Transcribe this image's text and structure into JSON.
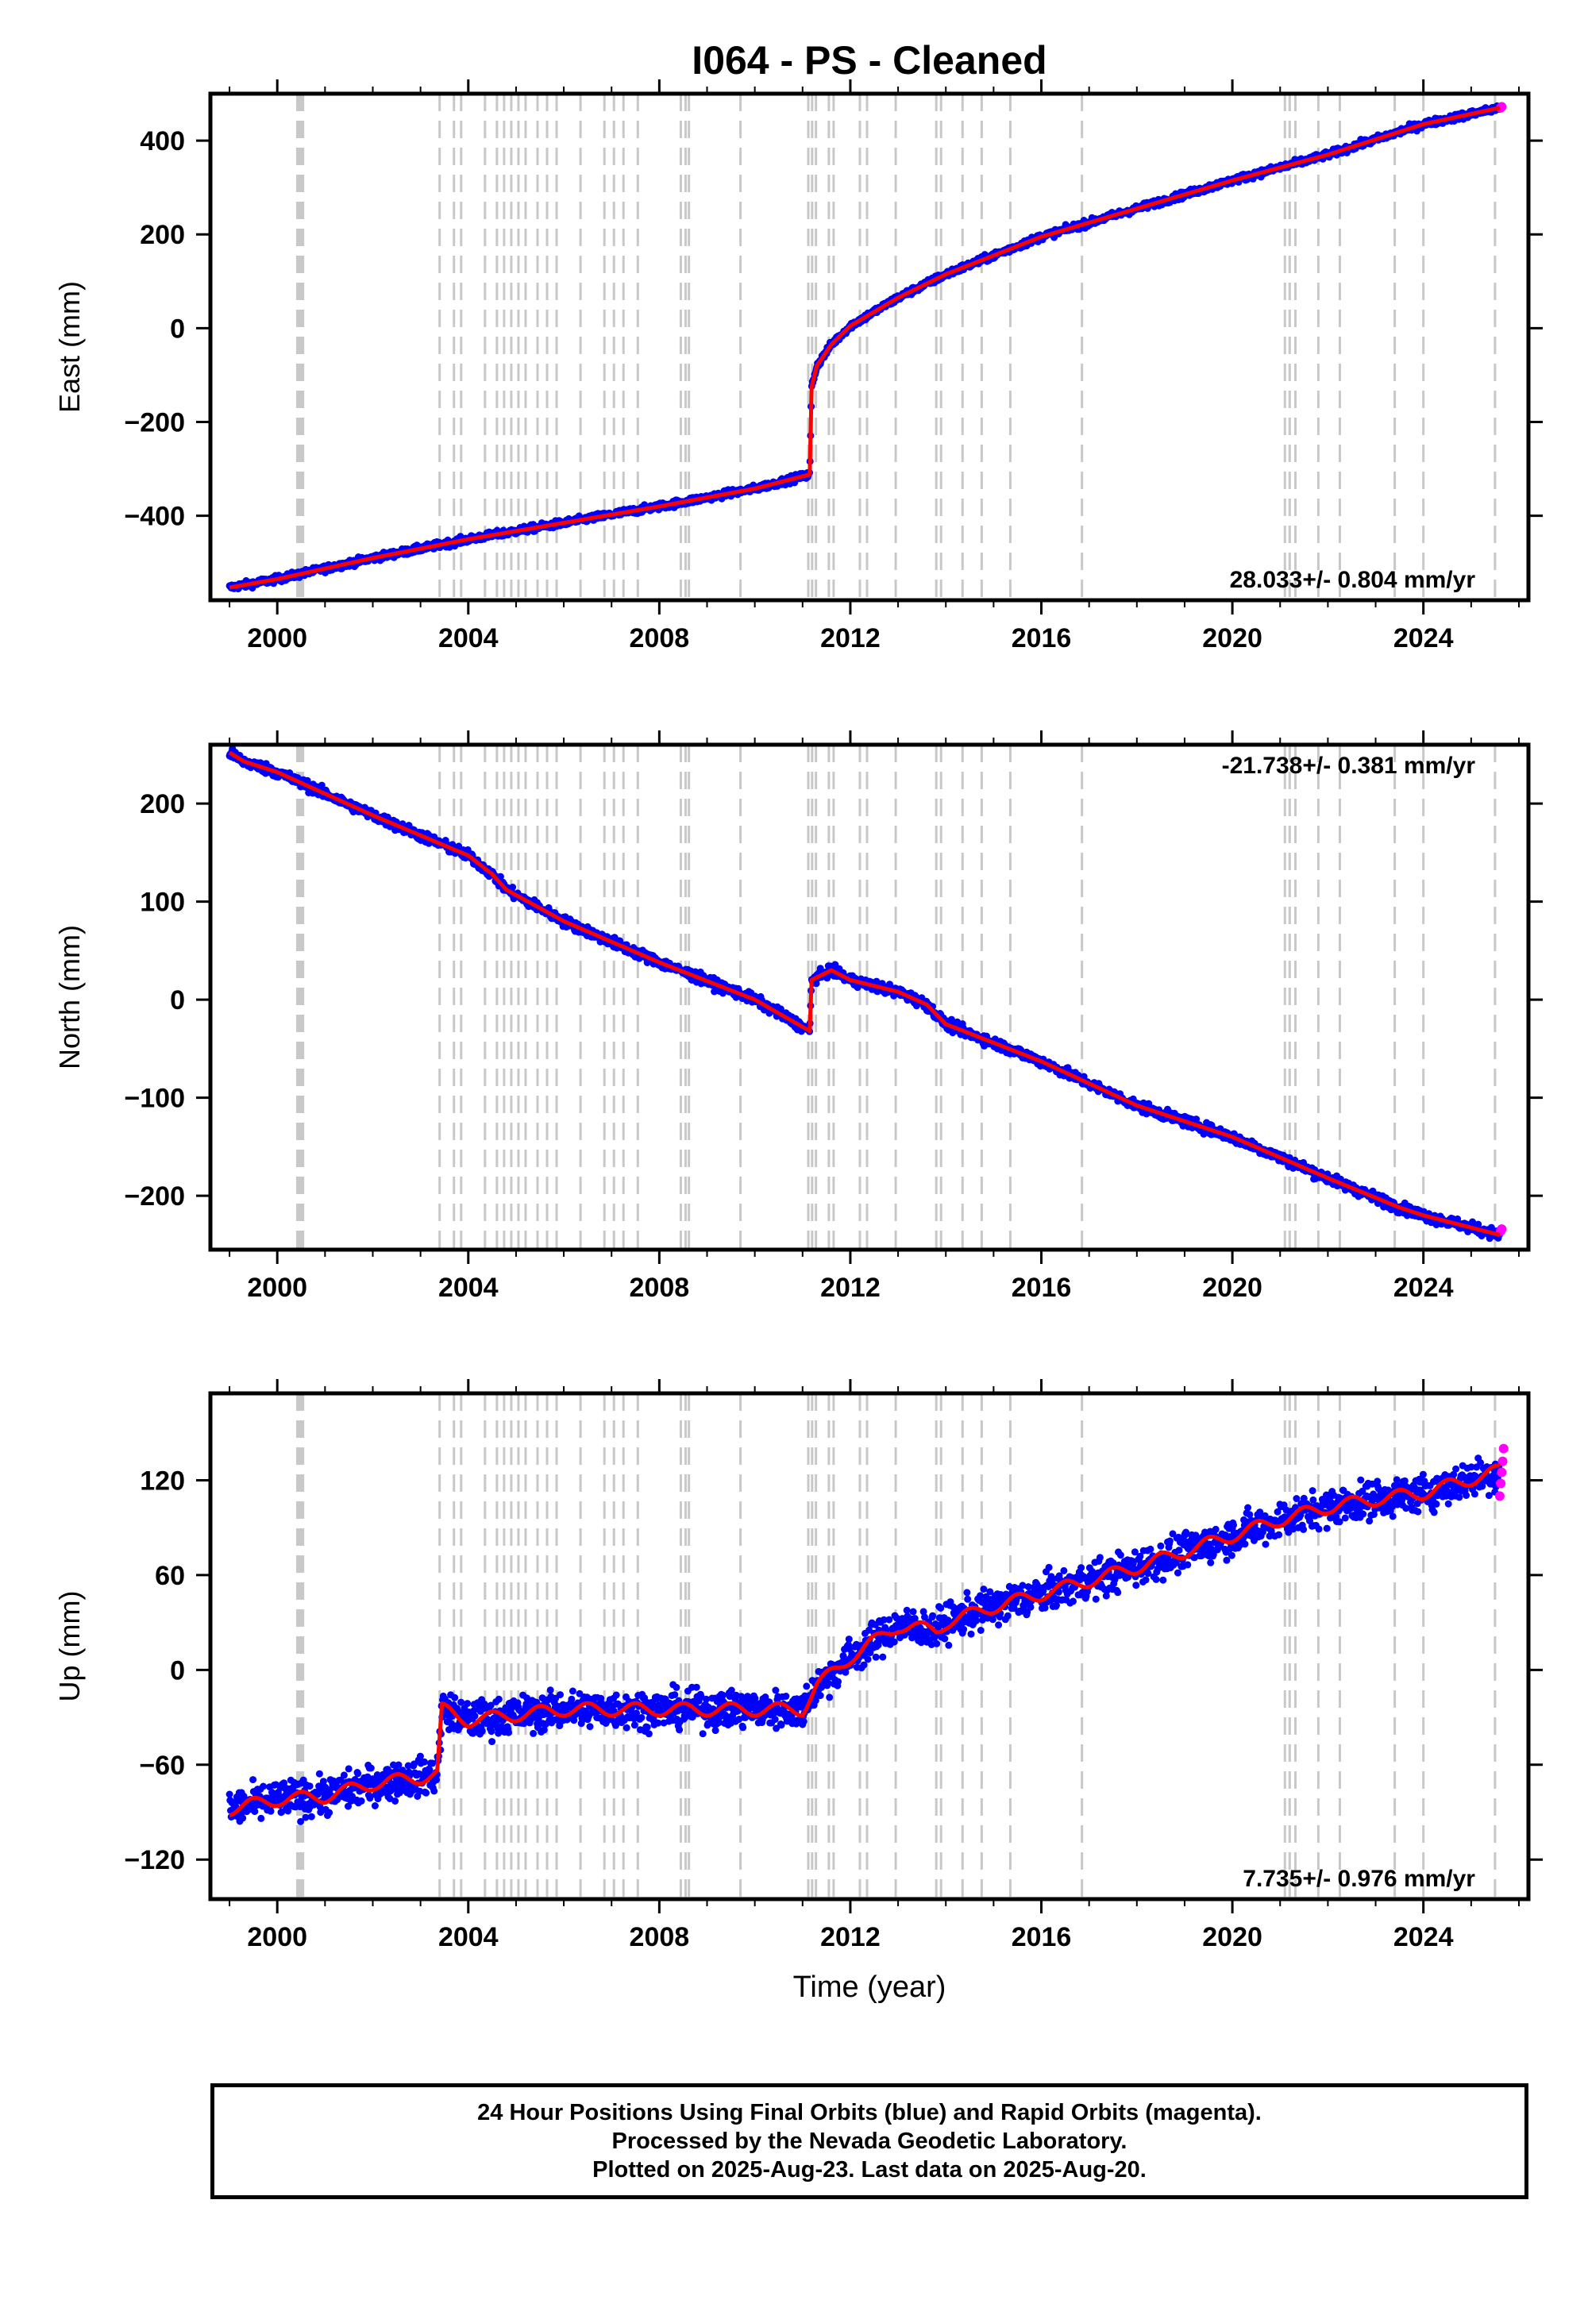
{
  "title": "I064  - PS - Cleaned",
  "xlabel": "Time (year)",
  "colors": {
    "final_orbits": "#0000ff",
    "rapid_orbits": "#ff00ff",
    "model": "#ff0000",
    "event_lines": "#c8c8c8"
  },
  "chart_data": [
    {
      "type": "scatter",
      "component": "East",
      "ylabel": "East (mm)",
      "xlim": [
        1998.6,
        2026.2
      ],
      "ylim": [
        -580,
        500
      ],
      "xticks": [
        2000,
        2004,
        2008,
        2012,
        2016,
        2020,
        2024
      ],
      "yticks": [
        -400,
        -200,
        0,
        200,
        400
      ],
      "rate_label": "28.033+/- 0.804 mm/yr",
      "rate_position": "bottom-right",
      "series": [
        {
          "role": "final-orbit-positions",
          "x": [
            1999.0,
            2000.0,
            2002.0,
            2004.0,
            2006.0,
            2008.0,
            2010.0,
            2011.15,
            2011.19,
            2011.3,
            2011.6,
            2012.0,
            2013.0,
            2014.0,
            2016.0,
            2018.0,
            2020.0,
            2022.0,
            2024.0,
            2025.6
          ],
          "y": [
            -553,
            -535,
            -490,
            -450,
            -415,
            -380,
            -342,
            -312,
            -125,
            -80,
            -35,
            5,
            65,
            115,
            195,
            255,
            315,
            370,
            435,
            470
          ]
        },
        {
          "role": "rapid-orbit-positions",
          "x": [
            2025.62,
            2025.64
          ],
          "y": [
            470,
            472
          ]
        },
        {
          "role": "model-fit",
          "x": [
            1999.0,
            2000.0,
            2002.0,
            2004.0,
            2006.0,
            2008.0,
            2010.0,
            2011.15,
            2011.19,
            2011.3,
            2011.6,
            2012.0,
            2013.0,
            2014.0,
            2016.0,
            2018.0,
            2020.0,
            2022.0,
            2024.0,
            2025.6
          ],
          "y": [
            -553,
            -535,
            -490,
            -450,
            -415,
            -380,
            -342,
            -312,
            -125,
            -80,
            -35,
            5,
            65,
            115,
            195,
            255,
            315,
            370,
            435,
            470
          ]
        }
      ]
    },
    {
      "type": "scatter",
      "component": "North",
      "ylabel": "North (mm)",
      "xlim": [
        1998.6,
        2026.2
      ],
      "ylim": [
        -255,
        260
      ],
      "xticks": [
        2000,
        2004,
        2008,
        2012,
        2016,
        2020,
        2024
      ],
      "yticks": [
        -200,
        -100,
        0,
        100,
        200
      ],
      "rate_label": "-21.738+/- 0.381 mm/yr",
      "rate_position": "top-right",
      "series": [
        {
          "role": "final-orbit-positions",
          "x": [
            1999.0,
            1999.3,
            2000.0,
            2002.0,
            2004.0,
            2004.5,
            2004.8,
            2006.0,
            2008.0,
            2010.0,
            2011.15,
            2011.19,
            2011.6,
            2012.0,
            2013.0,
            2013.6,
            2014.0,
            2016.0,
            2018.0,
            2020.0,
            2022.0,
            2023.5,
            2024.0,
            2025.6
          ],
          "y": [
            252,
            243,
            232,
            188,
            147,
            128,
            112,
            80,
            38,
            0,
            -32,
            20,
            30,
            20,
            8,
            -5,
            -25,
            -63,
            -108,
            -140,
            -182,
            -212,
            -220,
            -240
          ]
        },
        {
          "role": "rapid-orbit-positions",
          "x": [
            2025.62,
            2025.64
          ],
          "y": [
            -236,
            -234
          ]
        },
        {
          "role": "model-fit",
          "x": [
            1999.0,
            1999.3,
            2000.0,
            2002.0,
            2004.0,
            2004.5,
            2004.8,
            2006.0,
            2008.0,
            2010.0,
            2011.15,
            2011.19,
            2011.6,
            2012.0,
            2013.0,
            2013.6,
            2014.0,
            2016.0,
            2018.0,
            2020.0,
            2022.0,
            2023.5,
            2024.0,
            2025.6
          ],
          "y": [
            252,
            243,
            232,
            188,
            147,
            128,
            112,
            80,
            38,
            0,
            -32,
            20,
            30,
            20,
            8,
            -5,
            -25,
            -63,
            -108,
            -140,
            -182,
            -212,
            -220,
            -240
          ]
        }
      ]
    },
    {
      "type": "scatter",
      "component": "Up",
      "ylabel": "Up (mm)",
      "xlim": [
        1998.6,
        2026.2
      ],
      "ylim": [
        -145,
        175
      ],
      "xticks": [
        2000,
        2004,
        2008,
        2012,
        2016,
        2020,
        2024
      ],
      "yticks": [
        -120,
        -60,
        0,
        60,
        120
      ],
      "rate_label": "7.735+/- 0.976 mm/yr",
      "rate_position": "bottom-right",
      "series": [
        {
          "role": "final-orbit-positions",
          "x": [
            1999.0,
            2000.0,
            2001.0,
            2002.0,
            2003.0,
            2003.35,
            2003.45,
            2004.0,
            2006.0,
            2008.0,
            2010.0,
            2011.0,
            2011.3,
            2012.0,
            2013.0,
            2013.8,
            2014.0,
            2015.0,
            2016.0,
            2018.0,
            2020.0,
            2021.0,
            2022.0,
            2023.0,
            2024.0,
            2025.6
          ],
          "y": [
            -88,
            -82,
            -80,
            -72,
            -68,
            -66,
            -25,
            -32,
            -25,
            -25,
            -25,
            -25,
            -10,
            8,
            28,
            25,
            30,
            40,
            48,
            65,
            85,
            95,
            103,
            108,
            112,
            126
          ]
        },
        {
          "role": "rapid-orbit-positions",
          "x": [
            2025.6,
            2025.62,
            2025.64,
            2025.66,
            2025.68
          ],
          "y": [
            110,
            118,
            125,
            132,
            140
          ]
        },
        {
          "role": "model-fit",
          "x": [
            1999.0,
            2000.0,
            2001.0,
            2002.0,
            2003.0,
            2003.35,
            2003.45,
            2004.0,
            2006.0,
            2008.0,
            2010.0,
            2011.0,
            2011.3,
            2012.0,
            2013.0,
            2013.8,
            2014.0,
            2015.0,
            2016.0,
            2018.0,
            2020.0,
            2021.0,
            2022.0,
            2023.0,
            2024.0,
            2025.6
          ],
          "y": [
            -88,
            -82,
            -80,
            -72,
            -68,
            -66,
            -25,
            -32,
            -25,
            -25,
            -25,
            -25,
            -10,
            8,
            28,
            25,
            30,
            40,
            48,
            65,
            85,
            95,
            103,
            108,
            112,
            126
          ]
        }
      ]
    }
  ],
  "event_line_years": [
    2000.42,
    2000.46,
    2000.5,
    2000.54,
    2003.4,
    2003.7,
    2003.85,
    2004.35,
    2004.6,
    2004.75,
    2004.9,
    2005.05,
    2005.2,
    2005.45,
    2005.65,
    2005.85,
    2006.35,
    2006.85,
    2007.05,
    2007.25,
    2007.55,
    2008.45,
    2008.55,
    2008.62,
    2009.7,
    2011.12,
    2011.2,
    2011.28,
    2011.55,
    2011.65,
    2012.2,
    2012.35,
    2012.95,
    2013.8,
    2013.9,
    2014.35,
    2014.75,
    2015.35,
    2016.85,
    2021.1,
    2021.2,
    2021.32,
    2021.8,
    2022.25,
    2023.4,
    2024.0,
    2025.5
  ],
  "caption": {
    "line1": "24 Hour Positions Using Final Orbits (blue) and Rapid Orbits (magenta).",
    "line2": "Processed by the Nevada Geodetic Laboratory.",
    "line3": "Plotted on 2025-Aug-23. Last data on 2025-Aug-20."
  }
}
